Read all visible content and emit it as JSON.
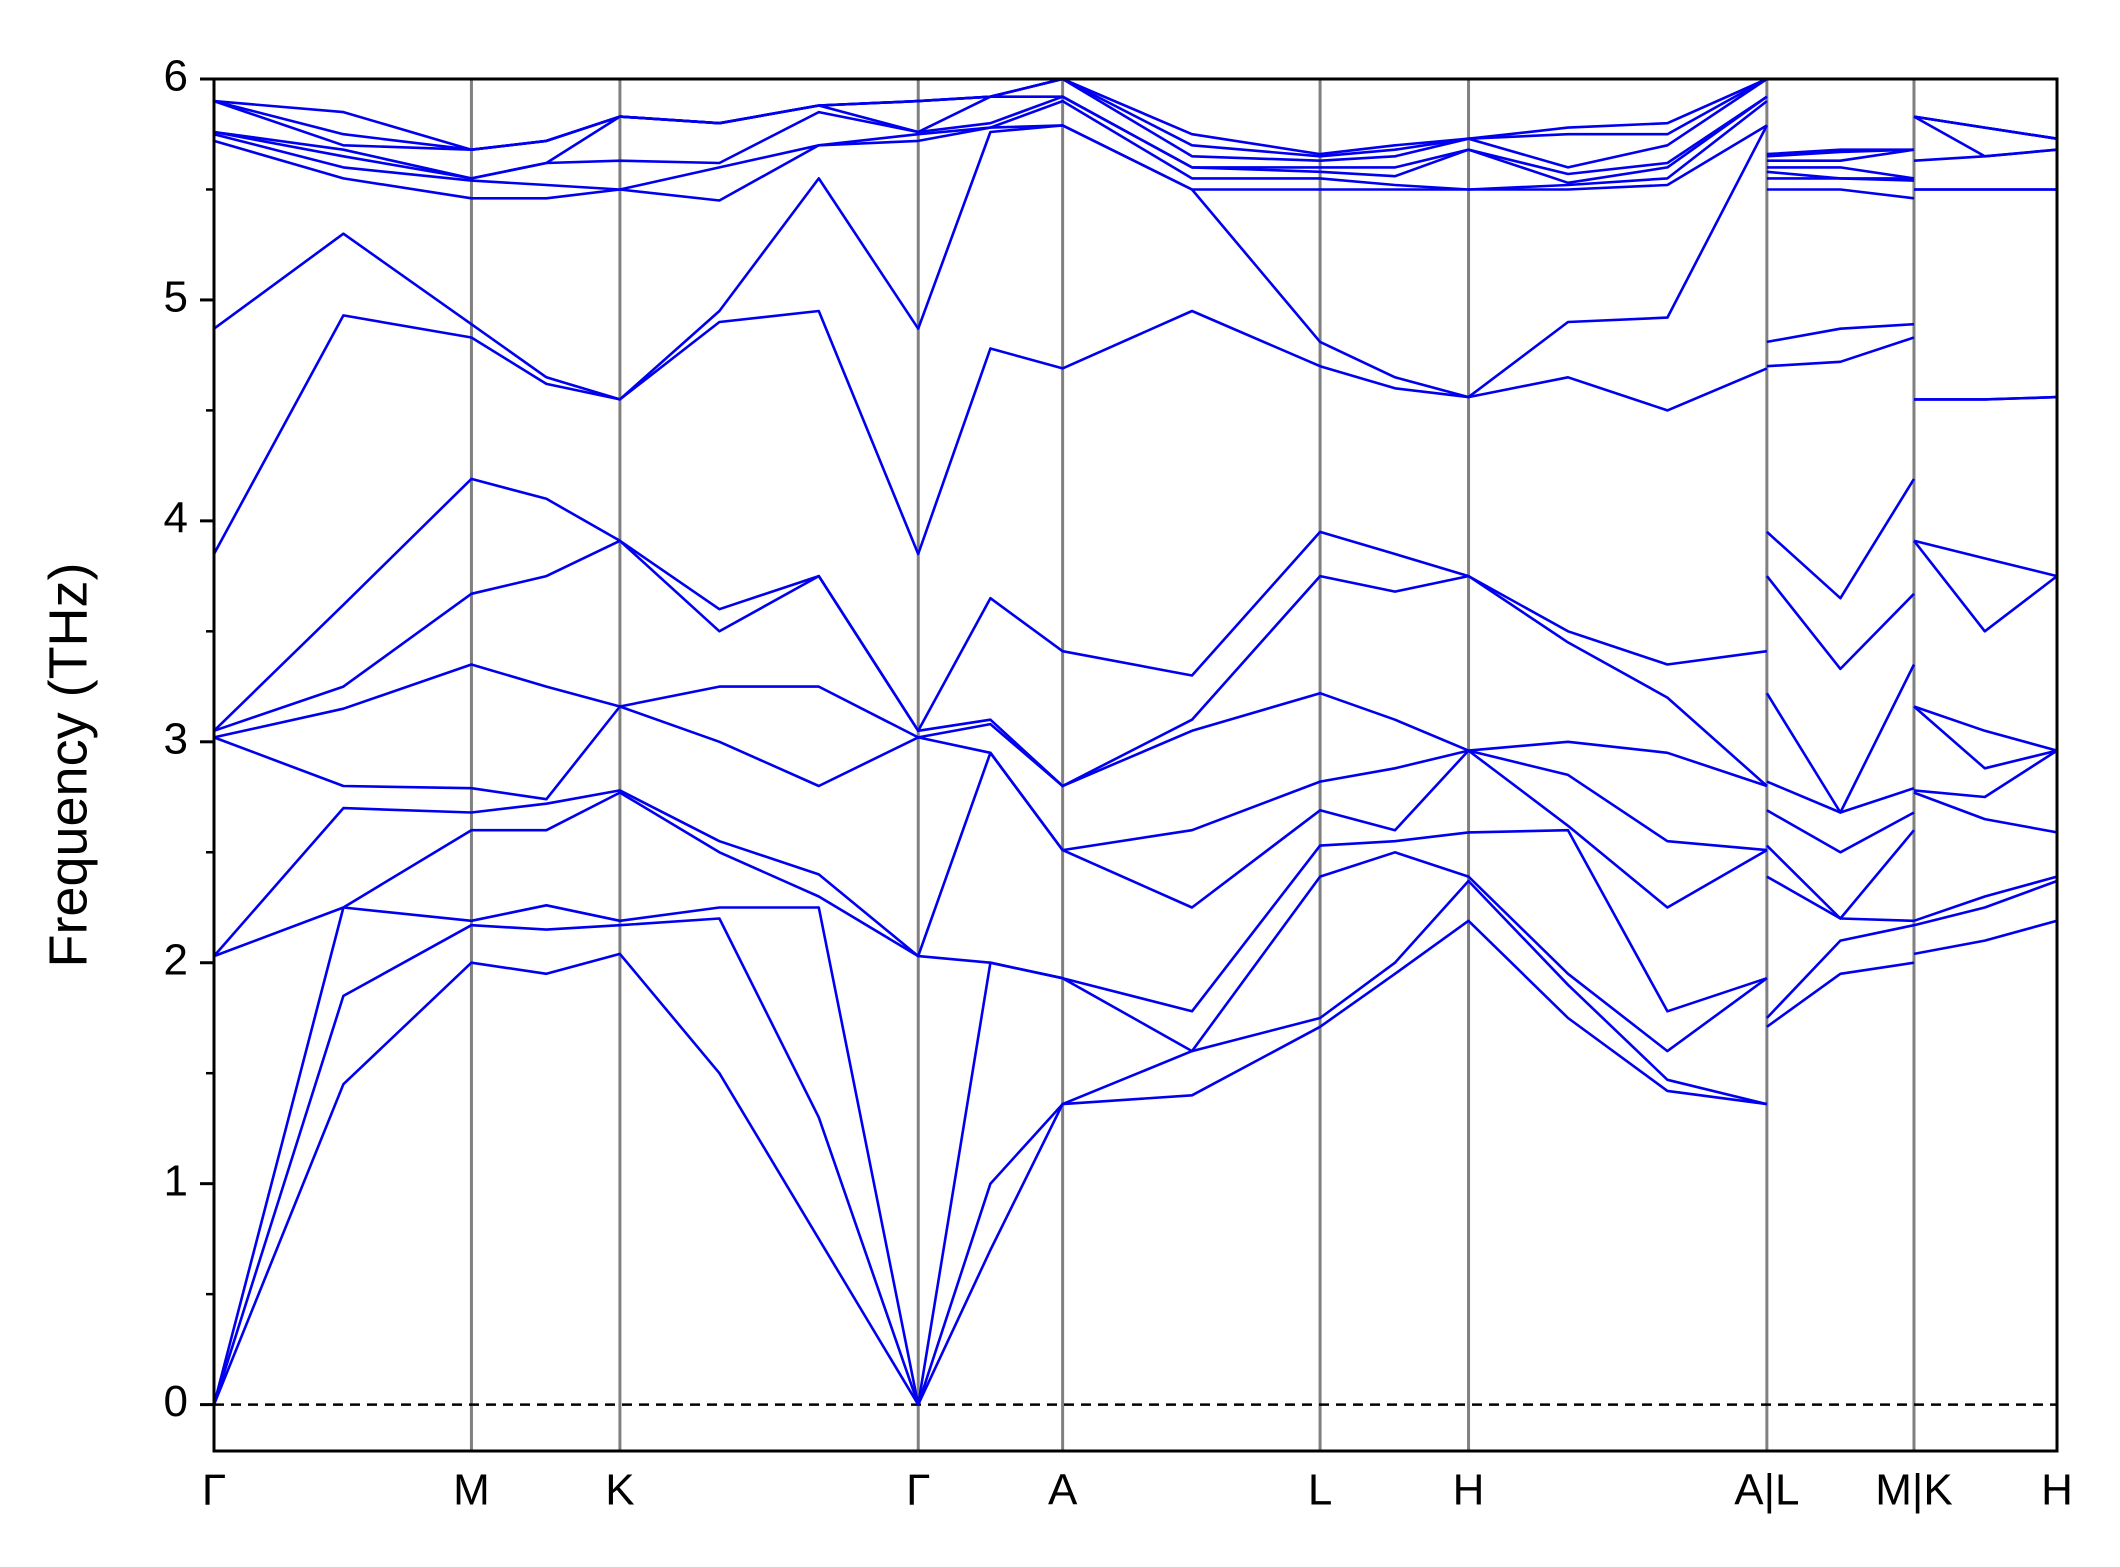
{
  "chart_data": {
    "type": "line",
    "ylabel": "Frequency (THz)",
    "color": "#0000ee",
    "x": [
      0,
      0.95,
      1.89,
      2.44,
      2.98,
      3.71,
      4.44,
      5.17,
      5.7,
      6.23,
      7.18,
      8.12,
      8.67,
      9.21,
      9.94,
      10.67,
      11.4,
      11.4,
      11.4,
      11.94,
      12.48,
      12.48,
      12.48,
      13.0,
      13.53
    ],
    "xlim": [
      0,
      13.53
    ],
    "xticks": [
      {
        "value": 0,
        "label": "Γ"
      },
      {
        "value": 1.89,
        "label": "M"
      },
      {
        "value": 2.98,
        "label": "K"
      },
      {
        "value": 5.17,
        "label": "Γ"
      },
      {
        "value": 6.23,
        "label": "A"
      },
      {
        "value": 8.12,
        "label": "L"
      },
      {
        "value": 9.21,
        "label": "H"
      },
      {
        "value": 11.4,
        "label": "A|L"
      },
      {
        "value": 12.48,
        "label": "M|K"
      },
      {
        "value": 13.53,
        "label": "H"
      }
    ],
    "ylim": [
      -0.21,
      6
    ],
    "yticks": [
      0,
      1,
      2,
      3,
      4,
      5,
      6
    ],
    "yminorticks": [
      0.5,
      1.5,
      2.5,
      3.5,
      4.5,
      5.5
    ],
    "zero_line": true,
    "series": [
      {
        "values": [
          0,
          1.45,
          2.0,
          1.95,
          2.04,
          1.5,
          0.75,
          0,
          0.7,
          1.36,
          1.4,
          1.71,
          1.95,
          2.19,
          1.75,
          1.42,
          1.36,
          null,
          1.71,
          1.95,
          2.0,
          null,
          2.04,
          2.1,
          2.19
        ]
      },
      {
        "values": [
          0,
          1.85,
          2.17,
          2.15,
          2.17,
          2.2,
          1.3,
          0,
          1.0,
          1.36,
          1.6,
          1.75,
          2.0,
          2.37,
          1.9,
          1.47,
          1.36,
          null,
          1.75,
          2.1,
          2.17,
          null,
          2.17,
          2.25,
          2.37
        ]
      },
      {
        "values": [
          0,
          2.25,
          2.19,
          2.26,
          2.19,
          2.25,
          2.25,
          0,
          2.0,
          1.93,
          1.6,
          2.39,
          2.5,
          2.39,
          1.95,
          1.6,
          1.93,
          null,
          2.39,
          2.2,
          2.19,
          null,
          2.19,
          2.3,
          2.39
        ]
      },
      {
        "values": [
          2.03,
          2.25,
          2.6,
          2.6,
          2.77,
          2.5,
          2.3,
          2.03,
          2.0,
          1.93,
          1.78,
          2.53,
          2.55,
          2.59,
          2.6,
          1.78,
          1.93,
          null,
          2.53,
          2.2,
          2.6,
          null,
          2.77,
          2.65,
          2.59
        ]
      },
      {
        "values": [
          2.03,
          2.7,
          2.68,
          2.72,
          2.78,
          2.55,
          2.4,
          2.03,
          2.95,
          2.51,
          2.25,
          2.69,
          2.6,
          2.96,
          2.62,
          2.25,
          2.51,
          null,
          2.69,
          2.5,
          2.68,
          null,
          2.78,
          2.75,
          2.96
        ]
      },
      {
        "values": [
          3.02,
          2.8,
          2.79,
          2.74,
          3.16,
          3.0,
          2.8,
          3.02,
          2.95,
          2.51,
          2.6,
          2.82,
          2.88,
          2.96,
          2.85,
          2.55,
          2.51,
          null,
          2.82,
          2.68,
          2.79,
          null,
          3.16,
          2.88,
          2.96
        ]
      },
      {
        "values": [
          3.02,
          3.15,
          3.35,
          3.25,
          3.16,
          3.25,
          3.25,
          3.02,
          3.08,
          2.8,
          3.05,
          3.22,
          3.1,
          2.96,
          3.0,
          2.95,
          2.8,
          null,
          3.22,
          2.68,
          3.35,
          null,
          3.16,
          3.05,
          2.96
        ]
      },
      {
        "values": [
          3.05,
          3.25,
          3.67,
          3.75,
          3.91,
          3.5,
          3.75,
          3.05,
          3.1,
          2.8,
          3.1,
          3.75,
          3.68,
          3.75,
          3.45,
          3.2,
          2.8,
          null,
          3.75,
          3.33,
          3.67,
          null,
          3.91,
          3.5,
          3.75
        ]
      },
      {
        "values": [
          3.05,
          3.62,
          4.19,
          4.1,
          3.91,
          3.6,
          3.75,
          3.05,
          3.65,
          3.41,
          3.3,
          3.95,
          3.85,
          3.75,
          3.5,
          3.35,
          3.41,
          null,
          3.95,
          3.65,
          4.19,
          null,
          3.91,
          3.83,
          3.75
        ]
      },
      {
        "values": [
          3.85,
          4.93,
          4.83,
          4.62,
          4.55,
          4.9,
          4.95,
          3.85,
          4.78,
          4.69,
          4.95,
          4.7,
          4.6,
          4.56,
          4.65,
          4.5,
          4.69,
          null,
          4.7,
          4.72,
          4.83,
          null,
          4.55,
          4.55,
          4.56
        ]
      },
      {
        "values": [
          4.87,
          5.3,
          4.89,
          4.65,
          4.55,
          4.95,
          5.55,
          4.87,
          5.76,
          5.79,
          5.5,
          4.81,
          4.65,
          4.56,
          4.9,
          4.92,
          5.79,
          null,
          4.81,
          4.87,
          4.89,
          null,
          4.55,
          4.55,
          4.56
        ]
      },
      {
        "values": [
          5.72,
          5.55,
          5.46,
          5.46,
          5.5,
          5.45,
          5.7,
          5.72,
          5.78,
          5.79,
          5.5,
          5.5,
          5.5,
          5.5,
          5.5,
          5.52,
          5.79,
          null,
          5.5,
          5.5,
          5.46,
          null,
          5.5,
          5.5,
          5.5
        ]
      },
      {
        "values": [
          5.75,
          5.6,
          5.54,
          5.52,
          5.5,
          5.6,
          5.7,
          5.75,
          5.78,
          5.9,
          5.55,
          5.55,
          5.52,
          5.5,
          5.52,
          5.55,
          5.9,
          null,
          5.55,
          5.55,
          5.54,
          null,
          5.5,
          5.5,
          5.5
        ]
      },
      {
        "values": [
          5.76,
          5.65,
          5.55,
          5.62,
          5.63,
          5.62,
          5.85,
          5.76,
          5.8,
          5.92,
          5.6,
          5.58,
          5.56,
          5.68,
          5.53,
          5.6,
          5.92,
          null,
          5.58,
          5.55,
          5.55,
          null,
          5.63,
          5.65,
          5.68
        ]
      },
      {
        "values": [
          5.76,
          5.68,
          5.55,
          5.62,
          5.83,
          5.8,
          5.88,
          5.76,
          5.92,
          5.92,
          5.6,
          5.6,
          5.6,
          5.68,
          5.57,
          5.62,
          5.92,
          null,
          5.6,
          5.6,
          5.55,
          null,
          5.83,
          5.65,
          5.68
        ]
      },
      {
        "values": [
          5.9,
          5.7,
          5.68,
          5.72,
          5.83,
          5.8,
          5.88,
          5.9,
          5.92,
          6.0,
          5.65,
          5.63,
          5.65,
          5.73,
          5.6,
          5.7,
          6.0,
          null,
          5.63,
          5.63,
          5.68,
          null,
          5.83,
          5.78,
          5.73
        ]
      },
      {
        "values": [
          5.9,
          5.75,
          5.68,
          5.72,
          5.83,
          5.8,
          5.88,
          5.9,
          5.92,
          6.0,
          5.7,
          5.65,
          5.68,
          5.73,
          5.75,
          5.75,
          6.0,
          null,
          5.65,
          5.67,
          5.68,
          null,
          5.83,
          5.78,
          5.73
        ]
      },
      {
        "values": [
          5.9,
          5.85,
          5.68,
          5.72,
          5.83,
          5.8,
          5.88,
          5.9,
          5.92,
          6.0,
          5.75,
          5.66,
          5.7,
          5.73,
          5.78,
          5.8,
          6.0,
          null,
          5.66,
          5.68,
          5.68,
          null,
          5.83,
          5.78,
          5.73
        ]
      }
    ]
  }
}
